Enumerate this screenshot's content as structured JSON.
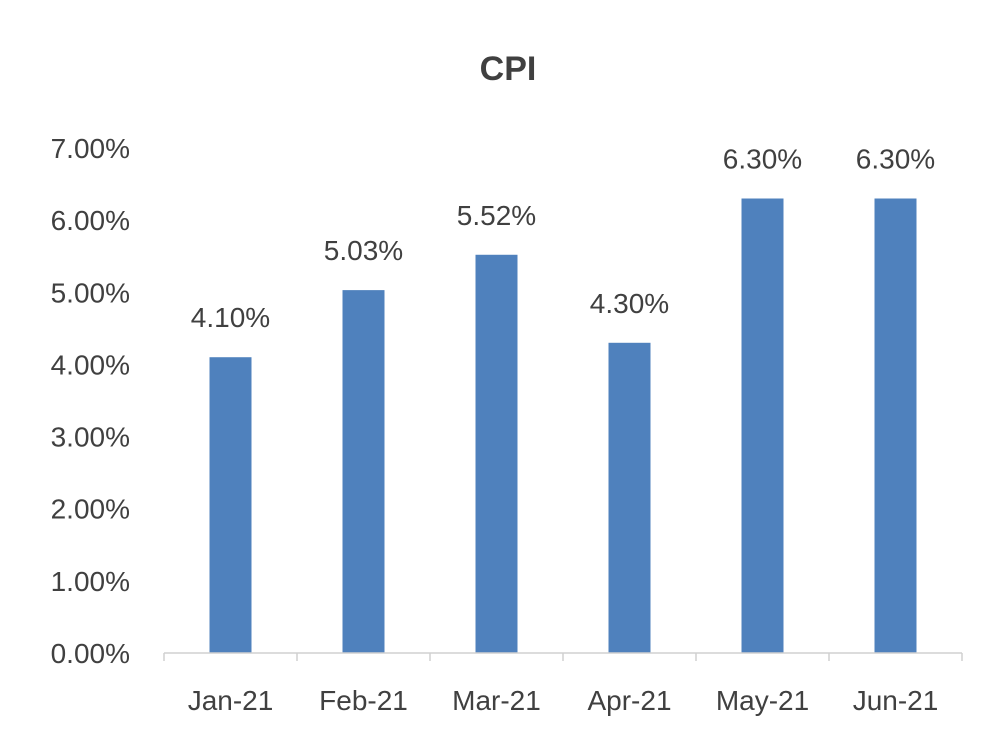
{
  "chart_data": {
    "type": "bar",
    "title": "CPI",
    "xlabel": "",
    "ylabel": "",
    "categories": [
      "Jan-21",
      "Feb-21",
      "Mar-21",
      "Apr-21",
      "May-21",
      "Jun-21"
    ],
    "values": [
      4.1,
      5.03,
      5.52,
      4.3,
      6.3,
      6.3
    ],
    "data_labels": [
      "4.10%",
      "5.03%",
      "5.52%",
      "4.30%",
      "6.30%",
      "6.30%"
    ],
    "y_ticks": [
      "0.00%",
      "1.00%",
      "2.00%",
      "3.00%",
      "4.00%",
      "5.00%",
      "6.00%",
      "7.00%"
    ],
    "ylim": [
      0,
      7
    ],
    "grid": false,
    "legend": "none",
    "bar_color": "#4f81bd"
  }
}
